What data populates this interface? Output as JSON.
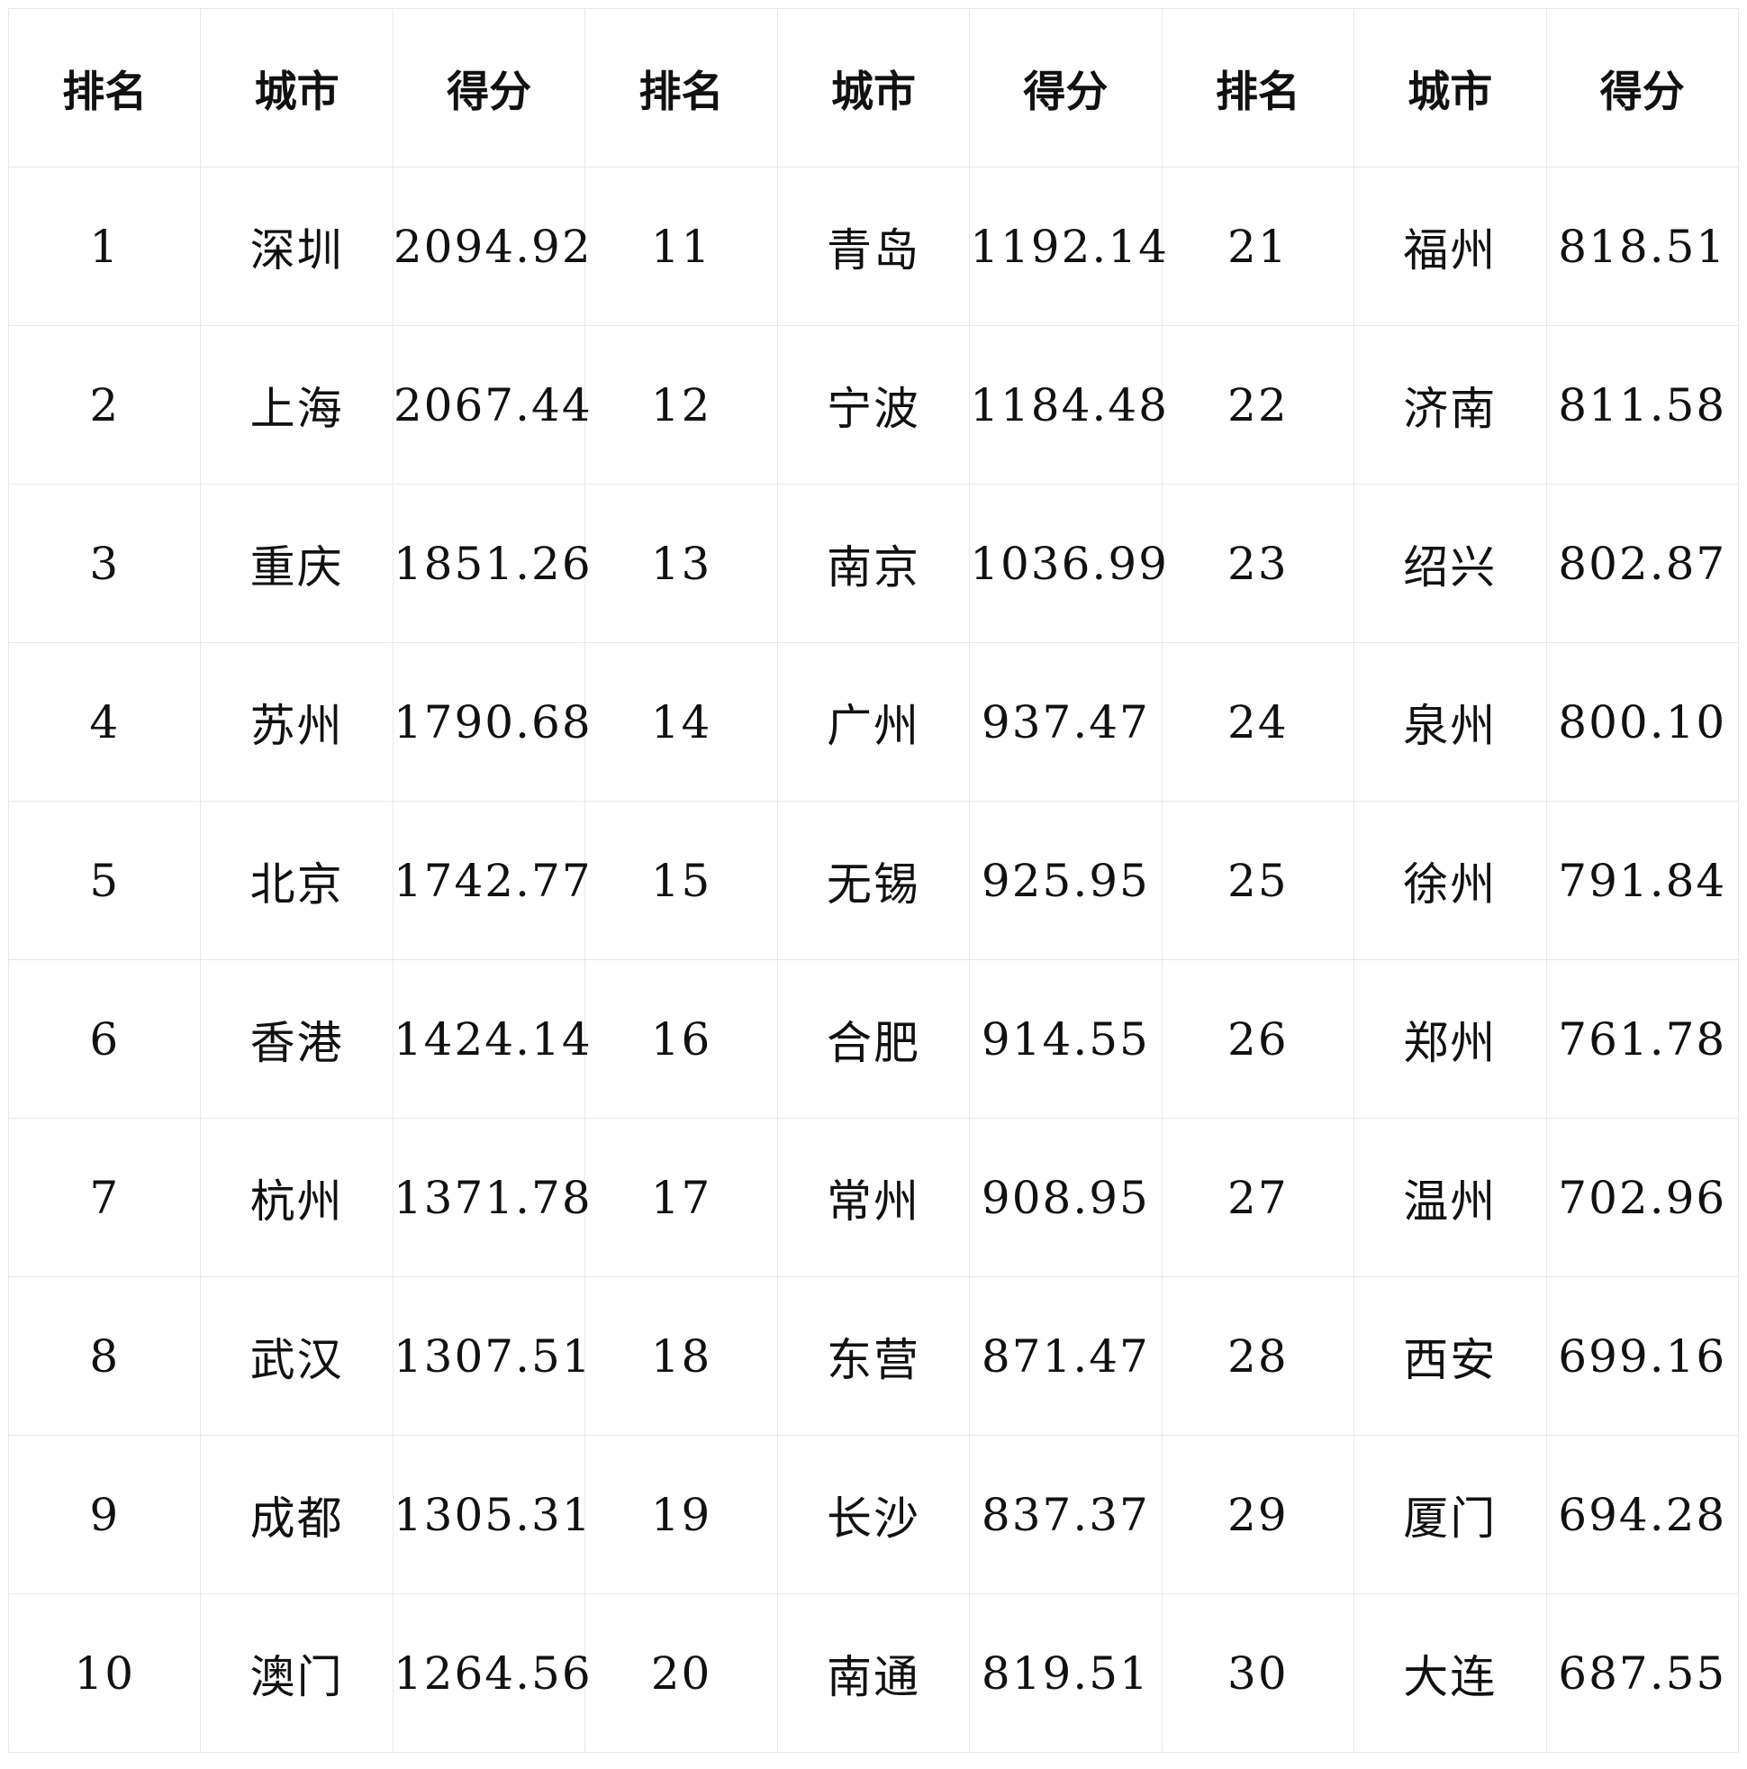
{
  "table": {
    "header": [
      "排名",
      "城市",
      "得分",
      "排名",
      "城市",
      "得分",
      "排名",
      "城市",
      "得分"
    ],
    "rows": [
      [
        "1",
        "深圳",
        "2094.92",
        "11",
        "青岛",
        "1192.14",
        "21",
        "福州",
        "818.51"
      ],
      [
        "2",
        "上海",
        "2067.44",
        "12",
        "宁波",
        "1184.48",
        "22",
        "济南",
        "811.58"
      ],
      [
        "3",
        "重庆",
        "1851.26",
        "13",
        "南京",
        "1036.99",
        "23",
        "绍兴",
        "802.87"
      ],
      [
        "4",
        "苏州",
        "1790.68",
        "14",
        "广州",
        "937.47",
        "24",
        "泉州",
        "800.10"
      ],
      [
        "5",
        "北京",
        "1742.77",
        "15",
        "无锡",
        "925.95",
        "25",
        "徐州",
        "791.84"
      ],
      [
        "6",
        "香港",
        "1424.14",
        "16",
        "合肥",
        "914.55",
        "26",
        "郑州",
        "761.78"
      ],
      [
        "7",
        "杭州",
        "1371.78",
        "17",
        "常州",
        "908.95",
        "27",
        "温州",
        "702.96"
      ],
      [
        "8",
        "武汉",
        "1307.51",
        "18",
        "东营",
        "871.47",
        "28",
        "西安",
        "699.16"
      ],
      [
        "9",
        "成都",
        "1305.31",
        "19",
        "长沙",
        "837.37",
        "29",
        "厦门",
        "694.28"
      ],
      [
        "10",
        "澳门",
        "1264.56",
        "20",
        "南通",
        "819.51",
        "30",
        "大连",
        "687.55"
      ]
    ]
  }
}
